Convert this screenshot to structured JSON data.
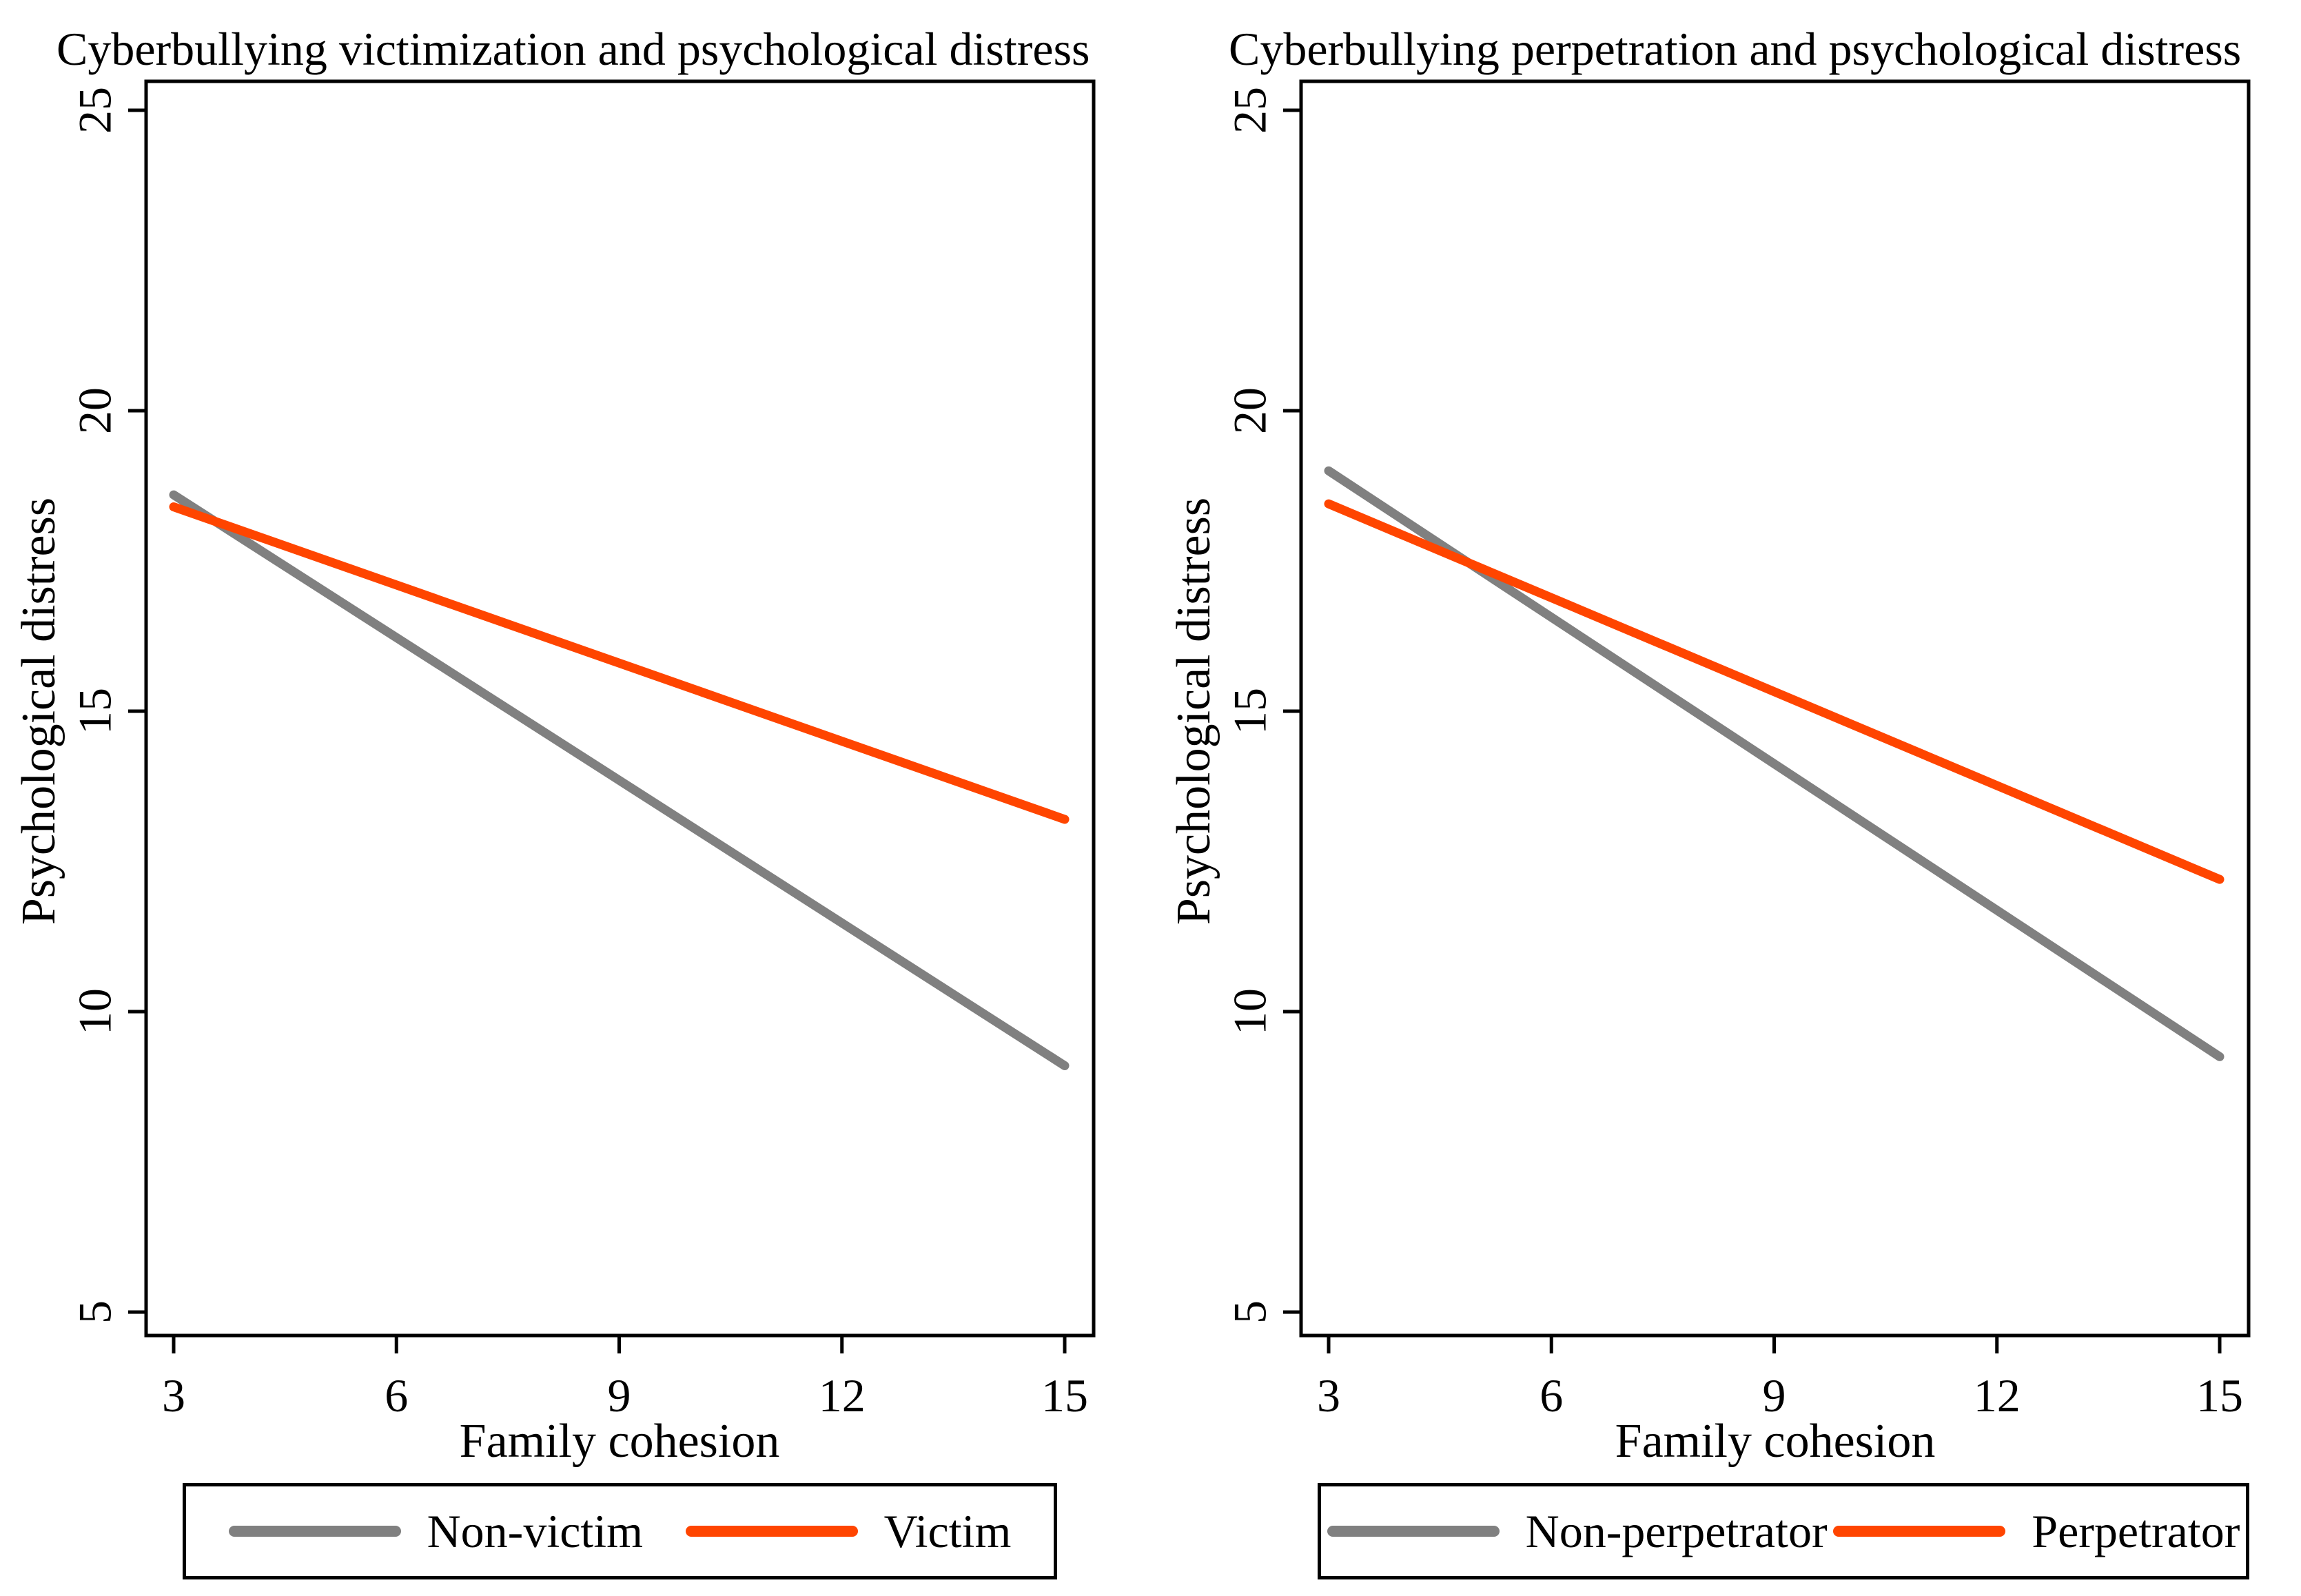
{
  "figure": {
    "background_color": "#FFFFFF",
    "axis_color": "#000000",
    "gray_color": "#808080",
    "orange_color": "#FF4500"
  },
  "chart_data": [
    {
      "type": "line",
      "title": "Cyberbullying victimization and psychological distress",
      "xlabel": "Family cohesion",
      "ylabel": "Psychological distress",
      "x_ticks": [
        3,
        6,
        9,
        12,
        15
      ],
      "y_ticks": [
        25,
        20,
        15,
        10,
        5
      ],
      "xlim": [
        3,
        15
      ],
      "ylim": [
        5,
        25
      ],
      "grid": "off",
      "legend_position": "bottom-boxed",
      "series": [
        {
          "name": "Non-victim",
          "color": "#808080",
          "x": [
            3,
            15
          ],
          "y": [
            18.6,
            9.1
          ]
        },
        {
          "name": "Victim",
          "color": "#FF4500",
          "x": [
            3,
            15
          ],
          "y": [
            18.4,
            13.2
          ]
        }
      ]
    },
    {
      "type": "line",
      "title": "Cyberbullying perpetration and psychological distress",
      "xlabel": "Family cohesion",
      "ylabel": "Psychological distress",
      "x_ticks": [
        3,
        6,
        9,
        12,
        15
      ],
      "y_ticks": [
        25,
        20,
        15,
        10,
        5
      ],
      "xlim": [
        3,
        15
      ],
      "ylim": [
        5,
        25
      ],
      "grid": "off",
      "legend_position": "bottom-boxed",
      "series": [
        {
          "name": "Non-perpetrator",
          "color": "#808080",
          "x": [
            3,
            15
          ],
          "y": [
            19.0,
            9.25
          ]
        },
        {
          "name": "Perpetrator",
          "color": "#FF4500",
          "x": [
            3,
            15
          ],
          "y": [
            18.45,
            12.2
          ]
        }
      ]
    }
  ]
}
